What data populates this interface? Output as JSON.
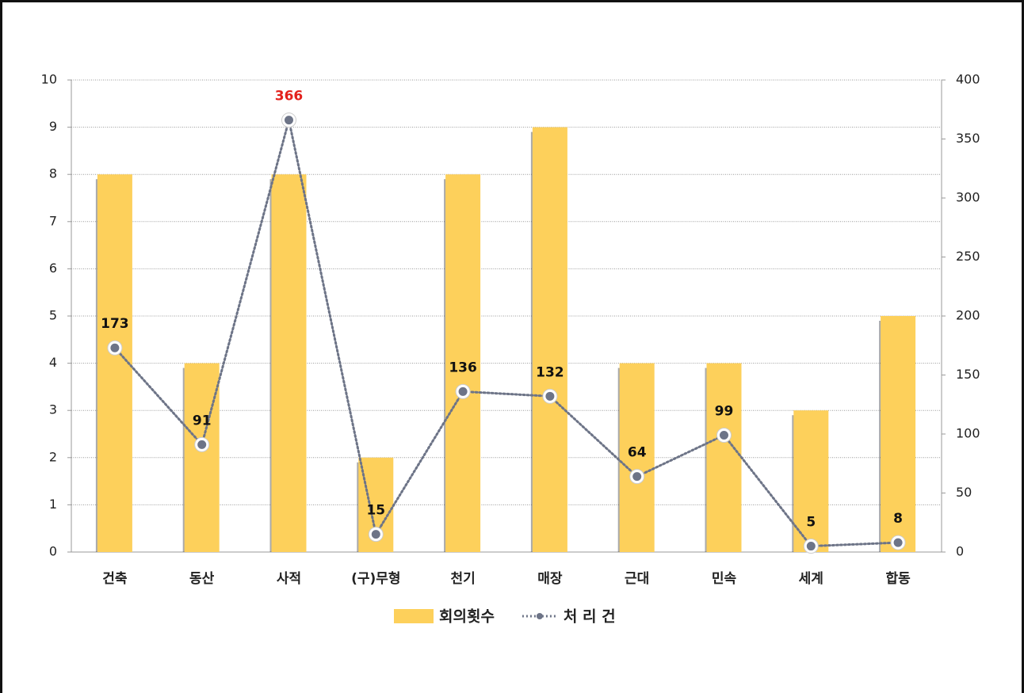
{
  "chart_data": {
    "type": "bar",
    "categories": [
      "건축",
      "동산",
      "사적",
      "(구)무형",
      "천기",
      "매장",
      "근대",
      "민속",
      "세계",
      "합동"
    ],
    "series": [
      {
        "name": "회의횟수",
        "color": "#fdd05b",
        "values": [
          8,
          4,
          8,
          2,
          8,
          9,
          4,
          4,
          3,
          5
        ]
      },
      {
        "name": "처 리 건",
        "type": "line",
        "axis": "y2",
        "color": "#6d7487",
        "values": [
          173,
          91,
          366,
          15,
          136,
          132,
          64,
          99,
          5,
          8
        ],
        "label_colors": [
          "#111111",
          "#111111",
          "#e3211c",
          "#111111",
          "#111111",
          "#111111",
          "#111111",
          "#111111",
          "#111111",
          "#111111"
        ]
      }
    ],
    "ylim": [
      0,
      10
    ],
    "yticks": [
      0,
      1,
      2,
      3,
      4,
      5,
      6,
      7,
      8,
      9,
      10
    ],
    "y2lim": [
      0,
      400
    ],
    "y2ticks": [
      0,
      50,
      100,
      150,
      200,
      250,
      300,
      350,
      400
    ],
    "grid": true,
    "legend": "bottom"
  }
}
